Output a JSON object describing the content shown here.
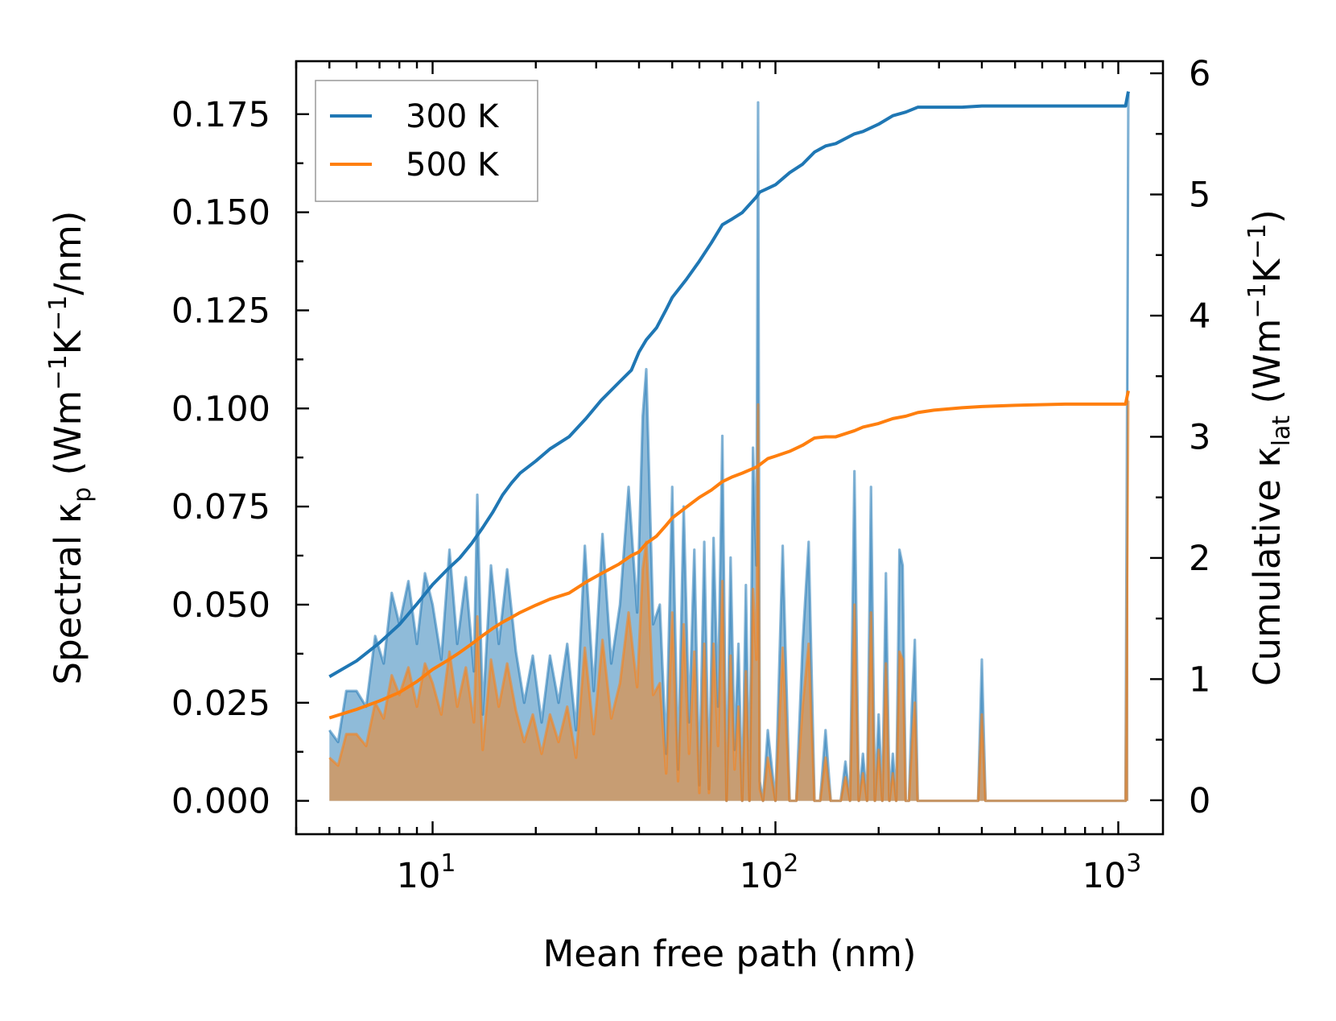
{
  "chart_data": {
    "type": "line",
    "x_label": "Mean free path (nm)",
    "x_scale": "log",
    "x_range": [
      4.0,
      1350.0
    ],
    "x_ticks": [
      {
        "value": 10,
        "base": "10",
        "exp": "1"
      },
      {
        "value": 100,
        "base": "10",
        "exp": "2"
      },
      {
        "value": 1000,
        "base": "10",
        "exp": "3"
      }
    ],
    "y_left": {
      "label_parts": [
        "Spectral κ",
        "p",
        " (Wm",
        "−1",
        "K",
        "−1",
        "/nm)"
      ],
      "range": [
        -0.0085,
        0.1885
      ],
      "ticks": [
        "0.000",
        "0.025",
        "0.050",
        "0.075",
        "0.100",
        "0.125",
        "0.150",
        "0.175"
      ]
    },
    "y_right": {
      "label_parts": [
        "Cumulative κ",
        "lat",
        " (Wm",
        "−1",
        "K",
        "−1",
        ")"
      ],
      "range": [
        -0.28,
        6.1
      ],
      "ticks": [
        "0",
        "1",
        "2",
        "3",
        "4",
        "5",
        "6"
      ]
    },
    "legend": {
      "position": "top-left",
      "entries": [
        {
          "label": "300 K",
          "color": "#1f77b4"
        },
        {
          "label": "500 K",
          "color": "#ff7f0e"
        }
      ]
    },
    "series": [
      {
        "name": "300 K",
        "color": "#1f77b4",
        "spectral": {
          "x": [
            5.0,
            5.3,
            5.6,
            6.0,
            6.4,
            6.8,
            7.2,
            7.6,
            8.0,
            8.5,
            9.0,
            9.5,
            10.0,
            10.6,
            11.2,
            11.8,
            12.5,
            13.2,
            13.5,
            14.0,
            14.8,
            15.6,
            16.5,
            17.5,
            18.5,
            19.6,
            20.8,
            22.0,
            23.3,
            24.7,
            26.2,
            27.8,
            29.5,
            31.3,
            33.2,
            35.2,
            37.3,
            39.5,
            41.0,
            42.0,
            44.0,
            46.0,
            48.0,
            50.0,
            52.0,
            54.0,
            56.0,
            58.0,
            60.0,
            62.0,
            64.0,
            66.0,
            68.0,
            70.0,
            72.0,
            74.0,
            76.0,
            78.0,
            80.0,
            82.0,
            84.0,
            86.0,
            88.0,
            89.0,
            90.0,
            92.0,
            95.0,
            100.0,
            105.0,
            110.0,
            115.0,
            120.0,
            125.0,
            130.0,
            135.0,
            140.0,
            145.0,
            150.0,
            155.0,
            160.0,
            165.0,
            170.0,
            175.0,
            180.0,
            185.0,
            190.0,
            195.0,
            200.0,
            205.0,
            210.0,
            215.0,
            220.0,
            225.0,
            230.0,
            235.0,
            240.0,
            245.0,
            250.0,
            255.0,
            260.0,
            265.0,
            270.0,
            275.0,
            280.0,
            300.0,
            350.0,
            390.0,
            400.0,
            410.0,
            420.0,
            500.0,
            800.0,
            1050.0,
            1070.0
          ],
          "y": [
            0.018,
            0.015,
            0.028,
            0.028,
            0.024,
            0.042,
            0.035,
            0.053,
            0.045,
            0.056,
            0.04,
            0.058,
            0.05,
            0.036,
            0.064,
            0.04,
            0.057,
            0.033,
            0.078,
            0.022,
            0.06,
            0.04,
            0.059,
            0.038,
            0.025,
            0.037,
            0.02,
            0.037,
            0.025,
            0.04,
            0.018,
            0.065,
            0.028,
            0.068,
            0.035,
            0.05,
            0.08,
            0.048,
            0.098,
            0.11,
            0.045,
            0.05,
            0.012,
            0.08,
            0.008,
            0.075,
            0.02,
            0.064,
            0.004,
            0.066,
            0.003,
            0.067,
            0.024,
            0.093,
            0.0,
            0.062,
            0.013,
            0.04,
            0.0,
            0.055,
            0.0,
            0.09,
            0.06,
            0.178,
            0.005,
            0.0,
            0.018,
            0.0,
            0.065,
            0.0,
            0.0,
            0.04,
            0.066,
            0.0,
            0.0,
            0.018,
            0.0,
            0.0,
            0.0,
            0.01,
            0.0,
            0.084,
            0.0,
            0.012,
            0.0,
            0.08,
            0.0,
            0.022,
            0.0,
            0.058,
            0.0,
            0.012,
            0.0,
            0.064,
            0.06,
            0.0,
            0.0,
            0.024,
            0.041,
            0.0,
            0.0,
            0.0,
            0.0,
            0.0,
            0.0,
            0.0,
            0.0,
            0.036,
            0.0,
            0.0,
            0.0,
            0.0,
            0.0,
            0.18
          ]
        },
        "cumulative": {
          "x": [
            5.0,
            6.0,
            7.0,
            8.0,
            9.0,
            10.0,
            11.0,
            12.0,
            13.0,
            14.0,
            15.0,
            16.0,
            17.0,
            18.0,
            20.0,
            22.0,
            25.0,
            28.0,
            31.0,
            35.0,
            38.0,
            40.0,
            42.0,
            45.0,
            48.0,
            50.0,
            55.0,
            60.0,
            65.0,
            70.0,
            75.0,
            80.0,
            88.0,
            90.0,
            95.0,
            100.0,
            110.0,
            120.0,
            130.0,
            140.0,
            150.0,
            170.0,
            180.0,
            200.0,
            220.0,
            240.0,
            260.0,
            290.0,
            350.0,
            400.0,
            500.0,
            700.0,
            1050.0,
            1070.0
          ],
          "y": [
            1.02,
            1.15,
            1.3,
            1.45,
            1.62,
            1.78,
            1.9,
            2.0,
            2.12,
            2.25,
            2.38,
            2.52,
            2.62,
            2.7,
            2.8,
            2.9,
            3.0,
            3.15,
            3.3,
            3.45,
            3.55,
            3.7,
            3.8,
            3.9,
            4.05,
            4.15,
            4.3,
            4.45,
            4.6,
            4.75,
            4.8,
            4.85,
            4.98,
            5.02,
            5.05,
            5.08,
            5.18,
            5.25,
            5.35,
            5.4,
            5.42,
            5.5,
            5.52,
            5.58,
            5.65,
            5.68,
            5.72,
            5.72,
            5.72,
            5.73,
            5.73,
            5.73,
            5.73,
            5.85
          ]
        }
      },
      {
        "name": "500 K",
        "color": "#ff7f0e",
        "spectral": {
          "x": [
            5.0,
            5.3,
            5.6,
            6.0,
            6.4,
            6.8,
            7.2,
            7.6,
            8.0,
            8.5,
            9.0,
            9.5,
            10.0,
            10.6,
            11.2,
            11.8,
            12.5,
            13.2,
            13.5,
            14.0,
            14.8,
            15.6,
            16.5,
            17.5,
            18.5,
            19.6,
            20.8,
            22.0,
            23.3,
            24.7,
            26.2,
            27.8,
            29.5,
            31.3,
            33.2,
            35.2,
            37.3,
            39.5,
            41.0,
            42.0,
            44.0,
            46.0,
            48.0,
            50.0,
            52.0,
            54.0,
            56.0,
            58.0,
            60.0,
            62.0,
            64.0,
            66.0,
            68.0,
            70.0,
            72.0,
            74.0,
            76.0,
            78.0,
            80.0,
            82.0,
            84.0,
            86.0,
            88.0,
            89.0,
            90.0,
            92.0,
            95.0,
            100.0,
            105.0,
            110.0,
            115.0,
            120.0,
            125.0,
            130.0,
            135.0,
            140.0,
            145.0,
            150.0,
            155.0,
            160.0,
            165.0,
            170.0,
            175.0,
            180.0,
            185.0,
            190.0,
            195.0,
            200.0,
            205.0,
            210.0,
            215.0,
            220.0,
            225.0,
            230.0,
            235.0,
            240.0,
            245.0,
            250.0,
            255.0,
            260.0,
            265.0,
            270.0,
            275.0,
            280.0,
            300.0,
            350.0,
            390.0,
            400.0,
            410.0,
            420.0,
            500.0,
            800.0,
            1050.0,
            1070.0
          ],
          "y": [
            0.011,
            0.009,
            0.017,
            0.017,
            0.014,
            0.025,
            0.021,
            0.032,
            0.027,
            0.034,
            0.024,
            0.035,
            0.03,
            0.022,
            0.038,
            0.024,
            0.034,
            0.02,
            0.047,
            0.013,
            0.036,
            0.024,
            0.035,
            0.023,
            0.015,
            0.022,
            0.012,
            0.022,
            0.015,
            0.024,
            0.011,
            0.039,
            0.017,
            0.041,
            0.021,
            0.03,
            0.048,
            0.029,
            0.059,
            0.066,
            0.027,
            0.03,
            0.007,
            0.048,
            0.005,
            0.045,
            0.012,
            0.038,
            0.002,
            0.04,
            0.002,
            0.04,
            0.014,
            0.056,
            0.0,
            0.037,
            0.008,
            0.024,
            0.0,
            0.033,
            0.0,
            0.054,
            0.036,
            0.101,
            0.003,
            0.0,
            0.011,
            0.0,
            0.039,
            0.0,
            0.0,
            0.024,
            0.04,
            0.0,
            0.0,
            0.011,
            0.0,
            0.0,
            0.0,
            0.006,
            0.0,
            0.05,
            0.0,
            0.007,
            0.0,
            0.048,
            0.0,
            0.013,
            0.0,
            0.035,
            0.0,
            0.007,
            0.0,
            0.038,
            0.036,
            0.0,
            0.0,
            0.014,
            0.025,
            0.0,
            0.0,
            0.0,
            0.0,
            0.0,
            0.0,
            0.0,
            0.0,
            0.022,
            0.0,
            0.0,
            0.0,
            0.0,
            0.0,
            0.102
          ]
        },
        "cumulative": {
          "x": [
            5.0,
            6.0,
            7.0,
            8.0,
            9.0,
            10.0,
            11.0,
            12.0,
            13.0,
            14.0,
            15.0,
            16.0,
            17.0,
            18.0,
            20.0,
            22.0,
            25.0,
            28.0,
            31.0,
            35.0,
            38.0,
            40.0,
            42.0,
            45.0,
            48.0,
            50.0,
            55.0,
            60.0,
            65.0,
            70.0,
            75.0,
            80.0,
            88.0,
            90.0,
            95.0,
            100.0,
            110.0,
            120.0,
            130.0,
            140.0,
            150.0,
            170.0,
            180.0,
            200.0,
            220.0,
            240.0,
            260.0,
            290.0,
            350.0,
            400.0,
            500.0,
            700.0,
            1050.0,
            1070.0
          ],
          "y": [
            0.68,
            0.75,
            0.82,
            0.89,
            0.98,
            1.08,
            1.15,
            1.22,
            1.29,
            1.36,
            1.42,
            1.47,
            1.51,
            1.55,
            1.61,
            1.66,
            1.71,
            1.8,
            1.87,
            1.95,
            2.02,
            2.05,
            2.12,
            2.18,
            2.27,
            2.33,
            2.42,
            2.5,
            2.56,
            2.63,
            2.67,
            2.7,
            2.75,
            2.77,
            2.82,
            2.84,
            2.88,
            2.93,
            2.99,
            3.0,
            3.0,
            3.05,
            3.08,
            3.11,
            3.15,
            3.17,
            3.2,
            3.22,
            3.24,
            3.25,
            3.26,
            3.27,
            3.27,
            3.38
          ]
        }
      }
    ]
  }
}
